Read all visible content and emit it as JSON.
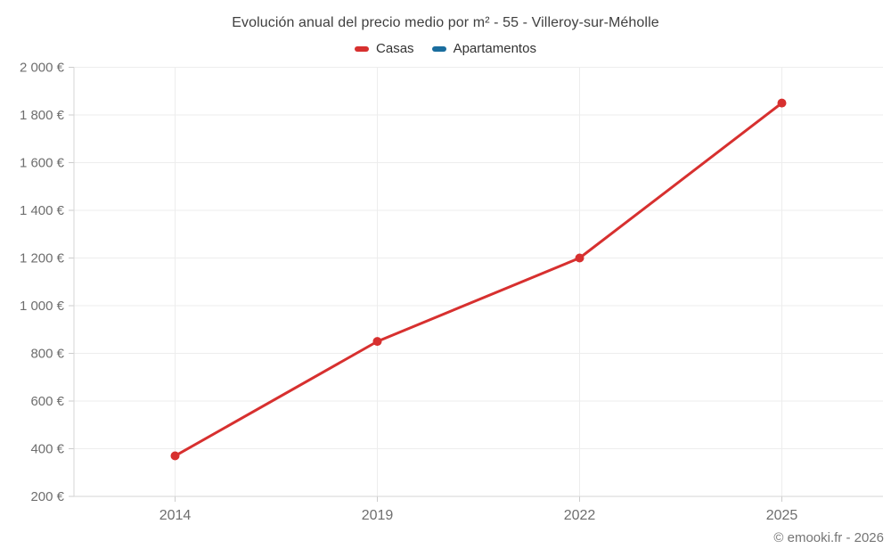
{
  "title": "Evolución anual del precio medio por m² - 55 - Villeroy-sur-Méholle",
  "credit": "© emooki.fr - 2026",
  "colors": {
    "grid": "#ededed",
    "axis": "#d6d6d6",
    "tick": "#cccccc",
    "axis_label": "#6e6e6e",
    "title_text": "#3f3f3f",
    "legend_text": "#333333",
    "credit_text": "#757575"
  },
  "chart_data": {
    "type": "line",
    "title": "Evolución anual del precio medio por m² - 55 - Villeroy-sur-Méholle",
    "categories": [
      "2014",
      "2019",
      "2022",
      "2025"
    ],
    "series": [
      {
        "name": "Casas",
        "color": "#d7302f",
        "values": [
          370,
          850,
          1200,
          1850
        ]
      },
      {
        "name": "Apartamentos",
        "color": "#1a6d9e",
        "values": []
      }
    ],
    "xlabel": "",
    "ylabel": "",
    "ylim": [
      200,
      2000
    ],
    "ytick_step": 200,
    "yticks": [
      200,
      400,
      600,
      800,
      1000,
      1200,
      1400,
      1600,
      1800,
      2000
    ],
    "ytick_labels": [
      "200 €",
      "400 €",
      "600 €",
      "800 €",
      "1 000 €",
      "1 200 €",
      "1 400 €",
      "1 600 €",
      "1 800 €",
      "2 000 €"
    ],
    "grid": true,
    "legend_position": "top",
    "note": "Only the Casas series has visible data points; Apartamentos appears in the legend only."
  }
}
